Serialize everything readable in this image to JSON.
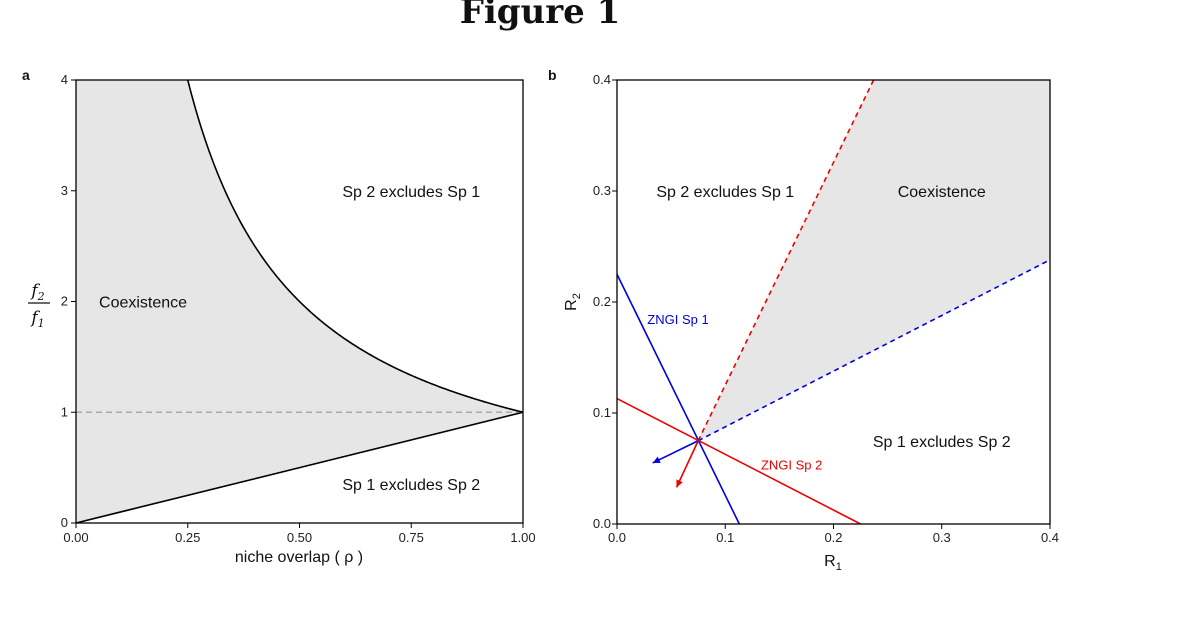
{
  "figure_title": "Figure 1",
  "chart_data": [
    {
      "panel": "a",
      "type": "area",
      "xlabel": "niche overlap ( ρ )",
      "ylabel_num": "f",
      "ylabel_num_sub": "2",
      "ylabel_den": "f",
      "ylabel_den_sub": "1",
      "xlim": [
        0,
        1
      ],
      "ylim": [
        0,
        4
      ],
      "xticks": [
        0,
        0.25,
        0.5,
        0.75,
        1
      ],
      "xtick_labels": [
        "0.00",
        "0.25",
        "0.50",
        "0.75",
        "1.00"
      ],
      "yticks": [
        0,
        1,
        2,
        3,
        4
      ],
      "ytick_labels": [
        "0",
        "1",
        "2",
        "3",
        "4"
      ],
      "curves": [
        {
          "name": "upper boundary",
          "formula": "1/rho",
          "color": "#000000"
        },
        {
          "name": "lower boundary",
          "formula": "rho",
          "color": "#000000"
        },
        {
          "name": "reference",
          "formula": "1",
          "color": "#aaaaaa",
          "dashed": true
        }
      ],
      "fill_color": "#e6e6e6",
      "annotations": [
        {
          "text": "Sp 2 excludes Sp 1",
          "x": 0.75,
          "y": 3.0
        },
        {
          "text": "Coexistence",
          "x": 0.15,
          "y": 2.0
        },
        {
          "text": "Sp 1 excludes Sp 2",
          "x": 0.75,
          "y": 0.35
        }
      ]
    },
    {
      "panel": "b",
      "type": "line",
      "xlabel": "R",
      "xlabel_sub": "1",
      "ylabel": "R",
      "ylabel_sub": "2",
      "xlim": [
        0,
        0.4
      ],
      "ylim": [
        0,
        0.4
      ],
      "xticks": [
        0,
        0.1,
        0.2,
        0.3,
        0.4
      ],
      "xtick_labels": [
        "0.0",
        "0.1",
        "0.2",
        "0.3",
        "0.4"
      ],
      "yticks": [
        0,
        0.1,
        0.2,
        0.3,
        0.4
      ],
      "ytick_labels": [
        "0.0",
        "0.1",
        "0.2",
        "0.3",
        "0.4"
      ],
      "equilibrium": [
        0.075,
        0.075
      ],
      "series": [
        {
          "name": "ZNGI Sp 1",
          "color": "#0000dd",
          "x": [
            0,
            0.113
          ],
          "y": [
            0.225,
            0
          ]
        },
        {
          "name": "ZNGI Sp 2",
          "color": "#ee0000",
          "x": [
            0,
            0.225
          ],
          "y": [
            0.113,
            0
          ]
        }
      ],
      "supply_lines": [
        {
          "color": "#ee0000",
          "dashed": true,
          "x": [
            0.075,
            0.237
          ],
          "y": [
            0.075,
            0.4
          ]
        },
        {
          "color": "#0000dd",
          "dashed": true,
          "x": [
            0.075,
            0.4
          ],
          "y": [
            0.075,
            0.238
          ]
        }
      ],
      "consumption_arrows": [
        {
          "color": "#0000dd",
          "to": [
            0.033,
            0.055
          ]
        },
        {
          "color": "#ee0000",
          "to": [
            0.055,
            0.033
          ]
        }
      ],
      "fill_color": "#e6e6e6",
      "annotations": [
        {
          "text": "Sp 2 excludes Sp 1",
          "x": 0.1,
          "y": 0.3
        },
        {
          "text": "Coexistence",
          "x": 0.3,
          "y": 0.3
        },
        {
          "text": "Sp 1 excludes Sp 2",
          "x": 0.3,
          "y": 0.075
        }
      ]
    }
  ]
}
